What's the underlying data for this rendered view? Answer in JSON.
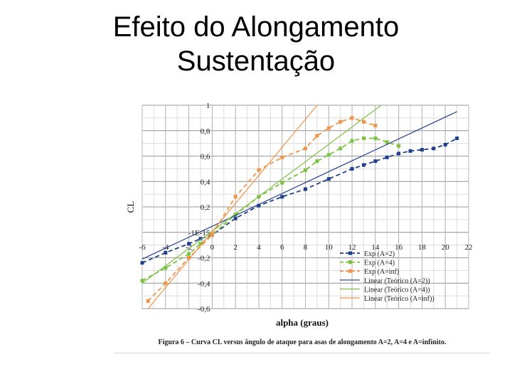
{
  "slide": {
    "title_line1": "Efeito do Alongamento",
    "title_line2": "Sustentação"
  },
  "figure": {
    "caption": "Figura 6 – Curva CL versus ângulo de ataque para asas de alongamento A=2, A=4 e A=infinito."
  },
  "chart_data": {
    "type": "line",
    "xlabel": "alpha (graus)",
    "ylabel": "CL",
    "xlim": [
      -6,
      22
    ],
    "ylim": [
      -0.6,
      1.0
    ],
    "x_ticks": [
      "-6",
      "-4",
      "-2",
      "0",
      "2",
      "4",
      "6",
      "8",
      "10",
      "12",
      "14",
      "16",
      "18",
      "20",
      "22"
    ],
    "y_ticks": [
      {
        "value": 1.0,
        "label": "1"
      },
      {
        "value": 0.8,
        "label": "0,8"
      },
      {
        "value": 0.6,
        "label": "0,6"
      },
      {
        "value": 0.4,
        "label": "0,4"
      },
      {
        "value": 0.2,
        "label": "0,2"
      },
      {
        "value": 0.0,
        "label": "-1E-15"
      },
      {
        "value": -0.2,
        "label": "-0,2"
      },
      {
        "value": -0.4,
        "label": "-0,4"
      },
      {
        "value": -0.6,
        "label": "-0,6"
      }
    ],
    "grid": true,
    "legend_position": "bottom-right",
    "series": [
      {
        "name": "Exp (A=2)",
        "kind": "experimental",
        "color": "#1f3e8c",
        "x": [
          -6,
          -4,
          -2,
          -1,
          0,
          2,
          4,
          6,
          8,
          10,
          12,
          13,
          14,
          15,
          16,
          17,
          18,
          19,
          20,
          21
        ],
        "y": [
          -0.24,
          -0.16,
          -0.09,
          -0.05,
          -0.02,
          0.11,
          0.21,
          0.28,
          0.34,
          0.42,
          0.5,
          0.53,
          0.56,
          0.59,
          0.62,
          0.64,
          0.65,
          0.66,
          0.69,
          0.74
        ]
      },
      {
        "name": "Exp (A=4)",
        "kind": "experimental",
        "color": "#7cc242",
        "x": [
          -6,
          -4,
          -2,
          -1,
          0,
          2,
          4,
          6,
          8,
          9,
          10,
          11,
          12,
          13,
          14,
          15,
          16
        ],
        "y": [
          -0.38,
          -0.28,
          -0.17,
          -0.09,
          -0.02,
          0.14,
          0.28,
          0.39,
          0.49,
          0.56,
          0.61,
          0.66,
          0.72,
          0.74,
          0.74,
          0.71,
          0.68
        ]
      },
      {
        "name": "Exp (A=inf)",
        "kind": "experimental",
        "color": "#f0944a",
        "x": [
          -5.5,
          -4,
          -2,
          0,
          2,
          4,
          6,
          8,
          9,
          10,
          11,
          12,
          13,
          14
        ],
        "y": [
          -0.54,
          -0.4,
          -0.2,
          -0.02,
          0.28,
          0.49,
          0.59,
          0.66,
          0.76,
          0.82,
          0.87,
          0.9,
          0.87,
          0.84
        ]
      },
      {
        "name": "Linear (Teórico (A=2))",
        "kind": "theory",
        "color": "#1f3e8c",
        "x": [
          -6,
          21
        ],
        "y": [
          -0.21,
          0.95
        ]
      },
      {
        "name": "Linear (Teórico (A=4))",
        "kind": "theory",
        "color": "#7cc242",
        "x": [
          -6,
          14.5
        ],
        "y": [
          -0.4,
          1.0
        ]
      },
      {
        "name": "Linear (Teórico (A=inf))",
        "kind": "theory",
        "color": "#f0944a",
        "x": [
          -5.5,
          9
        ],
        "y": [
          -0.6,
          1.0
        ]
      }
    ]
  }
}
